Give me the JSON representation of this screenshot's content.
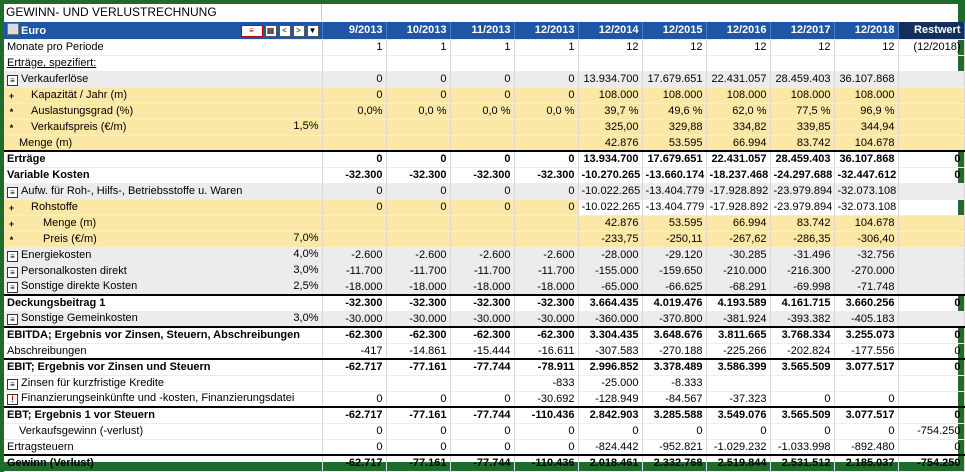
{
  "title": "GEWINN- UND VERLUSTRECHNUNG",
  "toolbar": {
    "currency_label": "Euro",
    "btn_prev": "<",
    "btn_next": ">",
    "filter_icon": "filter-icon"
  },
  "columns": [
    "9/2013",
    "10/2013",
    "11/2013",
    "12/2013",
    "12/2014",
    "12/2015",
    "12/2016",
    "12/2017",
    "12/2018",
    "Restwert"
  ],
  "rows": [
    {
      "label": "Monate pro Periode",
      "pct": "",
      "marker": "",
      "style": "",
      "values": [
        "1",
        "1",
        "1",
        "1",
        "12",
        "12",
        "12",
        "12",
        "12",
        "(12/2018)"
      ]
    },
    {
      "label": "Erträge, spezifiert:",
      "pct": "",
      "marker": "",
      "style": "underline",
      "values": [
        "",
        "",
        "",
        "",
        "",
        "",
        "",
        "",
        "",
        ""
      ]
    },
    {
      "label": "Verkauferlöse",
      "pct": "",
      "marker": "≡",
      "style": "gray",
      "values": [
        "0",
        "0",
        "0",
        "0",
        "13.934.700",
        "17.679.651",
        "22.431.057",
        "28.459.403",
        "36.107.868",
        ""
      ]
    },
    {
      "label": "Kapazität / Jahr (m)",
      "pct": "",
      "marker": "+",
      "style": "yellow indent",
      "values": [
        "0",
        "0",
        "0",
        "0",
        "108.000",
        "108.000",
        "108.000",
        "108.000",
        "108.000",
        ""
      ]
    },
    {
      "label": "Auslastungsgrad (%)",
      "pct": "",
      "marker": "*",
      "style": "yellow indent",
      "values": [
        "0,0%",
        "0,0 %",
        "0,0 %",
        "0,0 %",
        "39,7 %",
        "49,6 %",
        "62,0 %",
        "77,5 %",
        "96,9 %",
        ""
      ]
    },
    {
      "label": "Verkaufspreis (€/m)",
      "pct": "1,5%",
      "marker": "*",
      "style": "yellow indent",
      "values": [
        "",
        "",
        "",
        "",
        "325,00",
        "329,88",
        "334,82",
        "339,85",
        "344,94",
        ""
      ]
    },
    {
      "label": "Menge (m)",
      "pct": "",
      "marker": "",
      "style": "yellow indent",
      "values": [
        "",
        "",
        "",
        "",
        "42.876",
        "53.595",
        "66.994",
        "83.742",
        "104.678",
        ""
      ]
    },
    {
      "label": "Erträge",
      "pct": "",
      "marker": "",
      "style": "bold topline",
      "values": [
        "0",
        "0",
        "0",
        "0",
        "13.934.700",
        "17.679.651",
        "22.431.057",
        "28.459.403",
        "36.107.868",
        "0"
      ]
    },
    {
      "label": "Variable Kosten",
      "pct": "",
      "marker": "",
      "style": "bold",
      "values": [
        "-32.300",
        "-32.300",
        "-32.300",
        "-32.300",
        "-10.270.265",
        "-13.660.174",
        "-18.237.468",
        "-24.297.688",
        "-32.447.612",
        "0"
      ]
    },
    {
      "label": "Aufw. für Roh-, Hilfs-, Betriebsstoffe u. Waren",
      "pct": "",
      "marker": "≡",
      "style": "gray",
      "values": [
        "0",
        "0",
        "0",
        "0",
        "-10.022.265",
        "-13.404.779",
        "-17.928.892",
        "-23.979.894",
        "-32.073.108",
        ""
      ]
    },
    {
      "label": "Rohstoffe",
      "pct": "",
      "marker": "+",
      "style": "rohstoffe indent",
      "values": [
        "0",
        "0",
        "0",
        "0",
        "-10.022.265",
        "-13.404.779",
        "-17.928.892",
        "-23.979.894",
        "-32.073.108",
        ""
      ]
    },
    {
      "label": "Menge (m)",
      "pct": "",
      "marker": "+",
      "style": "yellow indent2",
      "values": [
        "",
        "",
        "",
        "",
        "42.876",
        "53.595",
        "66.994",
        "83.742",
        "104.678",
        ""
      ]
    },
    {
      "label": "Preis (€/m)",
      "pct": "7,0%",
      "marker": "*",
      "style": "yellow indent2",
      "values": [
        "",
        "",
        "",
        "",
        "-233,75",
        "-250,11",
        "-267,62",
        "-286,35",
        "-306,40",
        ""
      ]
    },
    {
      "label": "Energiekosten",
      "pct": "4,0%",
      "marker": "≡",
      "style": "gray",
      "values": [
        "-2.600",
        "-2.600",
        "-2.600",
        "-2.600",
        "-28.000",
        "-29.120",
        "-30.285",
        "-31.496",
        "-32.756",
        ""
      ]
    },
    {
      "label": "Personalkosten direkt",
      "pct": "3,0%",
      "marker": "≡",
      "style": "gray",
      "values": [
        "-11.700",
        "-11.700",
        "-11.700",
        "-11.700",
        "-155.000",
        "-159.650",
        "-210.000",
        "-216.300",
        "-270.000",
        ""
      ]
    },
    {
      "label": "Sonstige direkte Kosten",
      "pct": "2,5%",
      "marker": "≡",
      "style": "gray",
      "values": [
        "-18.000",
        "-18.000",
        "-18.000",
        "-18.000",
        "-65.000",
        "-66.625",
        "-68.291",
        "-69.998",
        "-71.748",
        ""
      ]
    },
    {
      "label": "Deckungsbeitrag 1",
      "pct": "",
      "marker": "",
      "style": "bold topline",
      "values": [
        "-32.300",
        "-32.300",
        "-32.300",
        "-32.300",
        "3.664.435",
        "4.019.476",
        "4.193.589",
        "4.161.715",
        "3.660.256",
        "0"
      ]
    },
    {
      "label": "Sonstige Gemeinkosten",
      "pct": "3,0%",
      "marker": "≡",
      "style": "gray",
      "values": [
        "-30.000",
        "-30.000",
        "-30.000",
        "-30.000",
        "-360.000",
        "-370.800",
        "-381.924",
        "-393.382",
        "-405.183",
        ""
      ]
    },
    {
      "label": "EBITDA; Ergebnis vor Zinsen, Steuern, Abschreibungen",
      "pct": "",
      "marker": "",
      "style": "bold topline",
      "values": [
        "-62.300",
        "-62.300",
        "-62.300",
        "-62.300",
        "3.304.435",
        "3.648.676",
        "3.811.665",
        "3.768.334",
        "3.255.073",
        "0"
      ]
    },
    {
      "label": "Abschreibungen",
      "pct": "",
      "marker": "",
      "style": "",
      "values": [
        "-417",
        "-14.861",
        "-15.444",
        "-16.611",
        "-307.583",
        "-270.188",
        "-225.266",
        "-202.824",
        "-177.556",
        "0"
      ]
    },
    {
      "label": "EBIT; Ergebnis vor Zinsen und Steuern",
      "pct": "",
      "marker": "",
      "style": "bold topline",
      "values": [
        "-62.717",
        "-77.161",
        "-77.744",
        "-78.911",
        "2.996.852",
        "3.378.489",
        "3.586.399",
        "3.565.509",
        "3.077.517",
        "0"
      ]
    },
    {
      "label": "Zinsen für kurzfristige Kredite",
      "pct": "",
      "marker": "≡",
      "style": "",
      "values": [
        "",
        "",
        "",
        "-833",
        "-25.000",
        "-8.333",
        "",
        "",
        "",
        ""
      ]
    },
    {
      "label": "Finanzierungseinkünfte und -kosten, Finanzierungsdatei",
      "pct": "",
      "marker": "!",
      "style": "",
      "values": [
        "0",
        "0",
        "0",
        "-30.692",
        "-128.949",
        "-84.567",
        "-37.323",
        "0",
        "0",
        ""
      ]
    },
    {
      "label": "EBT; Ergebnis 1 vor Steuern",
      "pct": "",
      "marker": "",
      "style": "bold topline",
      "values": [
        "-62.717",
        "-77.161",
        "-77.744",
        "-110.436",
        "2.842.903",
        "3.285.588",
        "3.549.076",
        "3.565.509",
        "3.077.517",
        "0"
      ]
    },
    {
      "label": "Verkaufsgewinn (-verlust)",
      "pct": "",
      "marker": "",
      "style": "indent",
      "values": [
        "0",
        "0",
        "0",
        "0",
        "0",
        "0",
        "0",
        "0",
        "0",
        "-754.250"
      ]
    },
    {
      "label": "Ertragsteuern",
      "pct": "",
      "marker": "",
      "style": "",
      "values": [
        "0",
        "0",
        "0",
        "0",
        "-824.442",
        "-952.821",
        "-1.029.232",
        "-1.033.998",
        "-892.480",
        "0"
      ]
    },
    {
      "label": "Gewinn (Verlust)",
      "pct": "",
      "marker": "",
      "style": "bold topline",
      "values": [
        "-62.717",
        "-77.161",
        "-77.744",
        "-110.436",
        "2.018.461",
        "2.332.768",
        "2.519.844",
        "2.531.512",
        "2.185.037",
        "-754.250"
      ]
    }
  ]
}
